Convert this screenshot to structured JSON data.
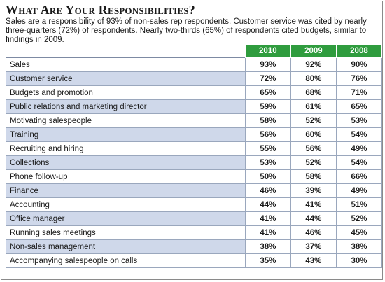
{
  "title": "What Are Your Responsibilities?",
  "description": "Sales are a responsibility of 93% of non-sales rep respondents. Customer service was cited by nearly three-quarters (72%) of respondents. Nearly two-thirds (65%) of respondents cited budgets, similar to findings in 2009.",
  "colors": {
    "header_green": "#2f9c3e",
    "alt_row_blue": "#cfd8ea"
  },
  "chart_data": {
    "type": "table",
    "title": "What Are Your Responsibilities?",
    "columns": [
      "2010",
      "2009",
      "2008"
    ],
    "rows": [
      {
        "label": "Sales",
        "values": [
          "93%",
          "92%",
          "90%"
        ]
      },
      {
        "label": "Customer service",
        "values": [
          "72%",
          "80%",
          "76%"
        ]
      },
      {
        "label": "Budgets and promotion",
        "values": [
          "65%",
          "68%",
          "71%"
        ]
      },
      {
        "label": "Public relations and marketing director",
        "values": [
          "59%",
          "61%",
          "65%"
        ]
      },
      {
        "label": "Motivating salespeople",
        "values": [
          "58%",
          "52%",
          "53%"
        ]
      },
      {
        "label": "Training",
        "values": [
          "56%",
          "60%",
          "54%"
        ]
      },
      {
        "label": "Recruiting and hiring",
        "values": [
          "55%",
          "56%",
          "49%"
        ]
      },
      {
        "label": "Collections",
        "values": [
          "53%",
          "52%",
          "54%"
        ]
      },
      {
        "label": "Phone follow-up",
        "values": [
          "50%",
          "58%",
          "66%"
        ]
      },
      {
        "label": "Finance",
        "values": [
          "46%",
          "39%",
          "49%"
        ]
      },
      {
        "label": "Accounting",
        "values": [
          "44%",
          "41%",
          "51%"
        ]
      },
      {
        "label": "Office manager",
        "values": [
          "41%",
          "44%",
          "52%"
        ]
      },
      {
        "label": "Running sales meetings",
        "values": [
          "41%",
          "46%",
          "45%"
        ]
      },
      {
        "label": "Non-sales management",
        "values": [
          "38%",
          "37%",
          "38%"
        ]
      },
      {
        "label": "Accompanying salespeople on calls",
        "values": [
          "35%",
          "43%",
          "30%"
        ]
      }
    ]
  }
}
